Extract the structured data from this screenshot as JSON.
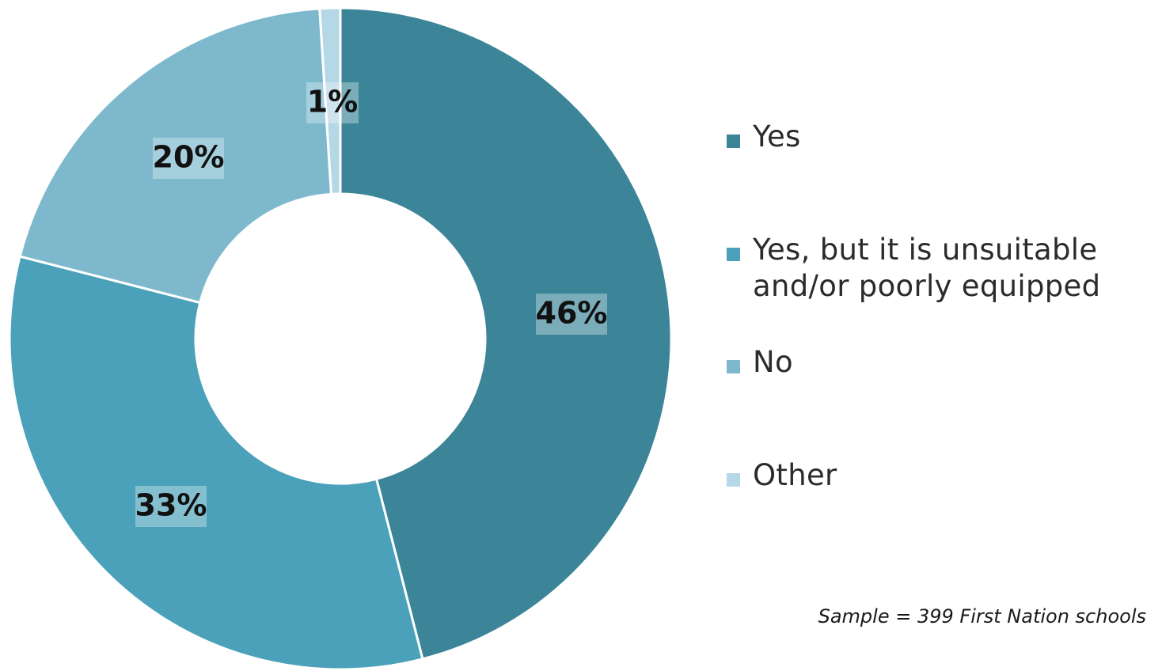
{
  "chart_data": {
    "type": "pie",
    "categories": [
      "Yes",
      "Yes, but it is unsuitable\nand/or poorly equipped",
      "No",
      "Other"
    ],
    "values": [
      46,
      33,
      20,
      1
    ],
    "value_labels": [
      "46%",
      "33%",
      "20%",
      "1%"
    ],
    "colors": [
      "#3c8599",
      "#4aa1b9",
      "#7db8cd",
      "#b5d8e6"
    ],
    "legend_position": "right",
    "donut": true
  },
  "footnote": "Sample = 399 First Nation schools"
}
